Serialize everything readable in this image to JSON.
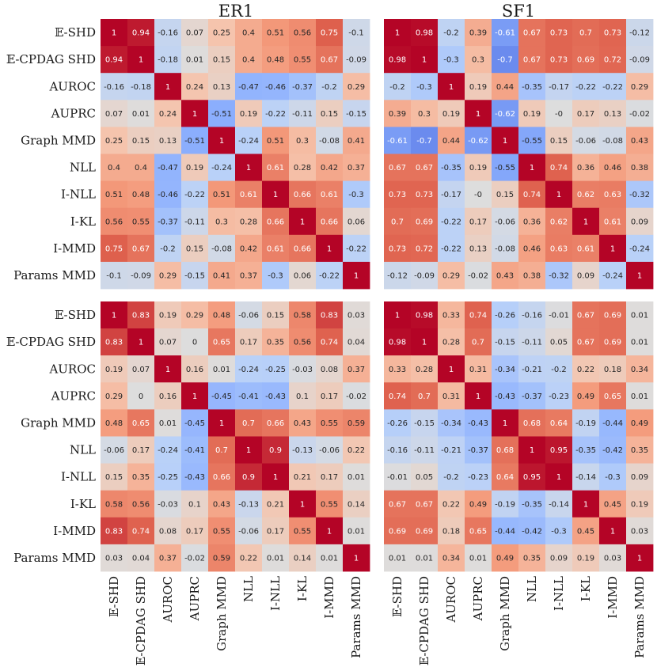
{
  "chart_data": [
    {
      "type": "heatmap",
      "title": "ER1",
      "categories": [
        "𝔼-SHD",
        "𝔼-CPDAG SHD",
        "AUROC",
        "AUPRC",
        "Graph MMD",
        "NLL",
        "I-NLL",
        "I-KL",
        "I-MMD",
        "Params MMD"
      ],
      "values": [
        [
          1,
          0.94,
          -0.16,
          0.07,
          0.25,
          0.4,
          0.51,
          0.56,
          0.75,
          -0.1
        ],
        [
          0.94,
          1,
          -0.18,
          0.01,
          0.15,
          0.4,
          0.48,
          0.55,
          0.67,
          -0.09
        ],
        [
          -0.16,
          -0.18,
          1,
          0.24,
          0.13,
          -0.47,
          -0.46,
          -0.37,
          -0.2,
          0.29
        ],
        [
          0.07,
          0.01,
          0.24,
          1,
          -0.51,
          0.19,
          -0.22,
          -0.11,
          0.15,
          -0.15
        ],
        [
          0.25,
          0.15,
          0.13,
          -0.51,
          1,
          -0.24,
          0.51,
          0.3,
          -0.08,
          0.41
        ],
        [
          0.4,
          0.4,
          -0.47,
          0.19,
          -0.24,
          1,
          0.61,
          0.28,
          0.42,
          0.37
        ],
        [
          0.51,
          0.48,
          -0.46,
          -0.22,
          0.51,
          0.61,
          1,
          0.66,
          0.61,
          -0.3
        ],
        [
          0.56,
          0.55,
          -0.37,
          -0.11,
          0.3,
          0.28,
          0.66,
          1,
          0.66,
          0.06
        ],
        [
          0.75,
          0.67,
          -0.2,
          0.15,
          -0.08,
          0.42,
          0.61,
          0.66,
          1,
          -0.22
        ],
        [
          -0.1,
          -0.09,
          0.29,
          -0.15,
          0.41,
          0.37,
          -0.3,
          0.06,
          -0.22,
          1
        ]
      ],
      "vlim": [
        -1,
        1
      ]
    },
    {
      "type": "heatmap",
      "title": "SF1",
      "categories": [
        "𝔼-SHD",
        "𝔼-CPDAG SHD",
        "AUROC",
        "AUPRC",
        "Graph MMD",
        "NLL",
        "I-NLL",
        "I-KL",
        "I-MMD",
        "Params MMD"
      ],
      "values": [
        [
          1,
          0.98,
          -0.2,
          0.39,
          -0.61,
          0.67,
          0.73,
          0.7,
          0.73,
          -0.12
        ],
        [
          0.98,
          1,
          -0.3,
          0.3,
          -0.7,
          0.67,
          0.73,
          0.69,
          0.72,
          -0.09
        ],
        [
          -0.2,
          -0.3,
          1,
          0.19,
          0.44,
          -0.35,
          -0.17,
          -0.22,
          -0.22,
          0.29
        ],
        [
          0.39,
          0.3,
          0.19,
          1,
          -0.62,
          0.19,
          0,
          0.17,
          0.13,
          -0.02
        ],
        [
          -0.61,
          -0.7,
          0.44,
          -0.62,
          1,
          -0.55,
          0.15,
          -0.06,
          -0.08,
          0.43
        ],
        [
          0.67,
          0.67,
          -0.35,
          0.19,
          -0.55,
          1,
          0.74,
          0.36,
          0.46,
          0.38
        ],
        [
          0.73,
          0.73,
          -0.17,
          0,
          0.15,
          0.74,
          1,
          0.62,
          0.63,
          -0.32
        ],
        [
          0.7,
          0.69,
          -0.22,
          0.17,
          -0.06,
          0.36,
          0.62,
          1,
          0.61,
          0.09
        ],
        [
          0.73,
          0.72,
          -0.22,
          0.13,
          -0.08,
          0.46,
          0.63,
          0.61,
          1,
          -0.24
        ],
        [
          -0.12,
          -0.09,
          0.29,
          -0.02,
          0.43,
          0.38,
          -0.32,
          0.09,
          -0.24,
          1
        ]
      ],
      "vlim": [
        -1,
        1
      ]
    },
    {
      "type": "heatmap",
      "title": "",
      "categories": [
        "𝔼-SHD",
        "𝔼-CPDAG SHD",
        "AUROC",
        "AUPRC",
        "Graph MMD",
        "NLL",
        "I-NLL",
        "I-KL",
        "I-MMD",
        "Params MMD"
      ],
      "values": [
        [
          1,
          0.83,
          0.19,
          0.29,
          0.48,
          -0.06,
          0.15,
          0.58,
          0.83,
          0.03
        ],
        [
          0.83,
          1,
          0.07,
          0,
          0.65,
          0.17,
          0.35,
          0.56,
          0.74,
          0.04
        ],
        [
          0.19,
          0.07,
          1,
          0.16,
          0.01,
          -0.24,
          -0.25,
          -0.03,
          0.08,
          0.37
        ],
        [
          0.29,
          0,
          0.16,
          1,
          -0.45,
          -0.41,
          -0.43,
          0.1,
          0.17,
          -0.02
        ],
        [
          0.48,
          0.65,
          0.01,
          -0.45,
          1,
          0.7,
          0.66,
          0.43,
          0.55,
          0.59
        ],
        [
          -0.06,
          0.17,
          -0.24,
          -0.41,
          0.7,
          1,
          0.9,
          -0.13,
          -0.06,
          0.22
        ],
        [
          0.15,
          0.35,
          -0.25,
          -0.43,
          0.66,
          0.9,
          1,
          0.21,
          0.17,
          0.01
        ],
        [
          0.58,
          0.56,
          -0.03,
          0.1,
          0.43,
          -0.13,
          0.21,
          1,
          0.55,
          0.14
        ],
        [
          0.83,
          0.74,
          0.08,
          0.17,
          0.55,
          -0.06,
          0.17,
          0.55,
          1,
          0.01
        ],
        [
          0.03,
          0.04,
          0.37,
          -0.02,
          0.59,
          0.22,
          0.01,
          0.14,
          0.01,
          1
        ]
      ],
      "vlim": [
        -1,
        1
      ]
    },
    {
      "type": "heatmap",
      "title": "",
      "categories": [
        "𝔼-SHD",
        "𝔼-CPDAG SHD",
        "AUROC",
        "AUPRC",
        "Graph MMD",
        "NLL",
        "I-NLL",
        "I-KL",
        "I-MMD",
        "Params MMD"
      ],
      "values": [
        [
          1,
          0.98,
          0.33,
          0.74,
          -0.26,
          -0.16,
          -0.01,
          0.67,
          0.69,
          0.01
        ],
        [
          0.98,
          1,
          0.28,
          0.7,
          -0.15,
          -0.11,
          0.05,
          0.67,
          0.69,
          0.01
        ],
        [
          0.33,
          0.28,
          1,
          0.31,
          -0.34,
          -0.21,
          -0.2,
          0.22,
          0.18,
          0.34
        ],
        [
          0.74,
          0.7,
          0.31,
          1,
          -0.43,
          -0.37,
          -0.23,
          0.49,
          0.65,
          0.01
        ],
        [
          -0.26,
          -0.15,
          -0.34,
          -0.43,
          1,
          0.68,
          0.64,
          -0.19,
          -0.44,
          0.49
        ],
        [
          -0.16,
          -0.11,
          -0.21,
          -0.37,
          0.68,
          1,
          0.95,
          -0.35,
          -0.42,
          0.35
        ],
        [
          -0.01,
          0.05,
          -0.2,
          -0.23,
          0.64,
          0.95,
          1,
          -0.14,
          -0.3,
          0.09
        ],
        [
          0.67,
          0.67,
          0.22,
          0.49,
          -0.19,
          -0.35,
          -0.14,
          1,
          0.45,
          0.19
        ],
        [
          0.69,
          0.69,
          0.18,
          0.65,
          -0.44,
          -0.42,
          -0.3,
          0.45,
          1,
          0.03
        ],
        [
          0.01,
          0.01,
          0.34,
          0.01,
          0.49,
          0.35,
          0.09,
          0.19,
          0.03,
          1
        ]
      ],
      "vlim": [
        -1,
        1
      ]
    }
  ]
}
